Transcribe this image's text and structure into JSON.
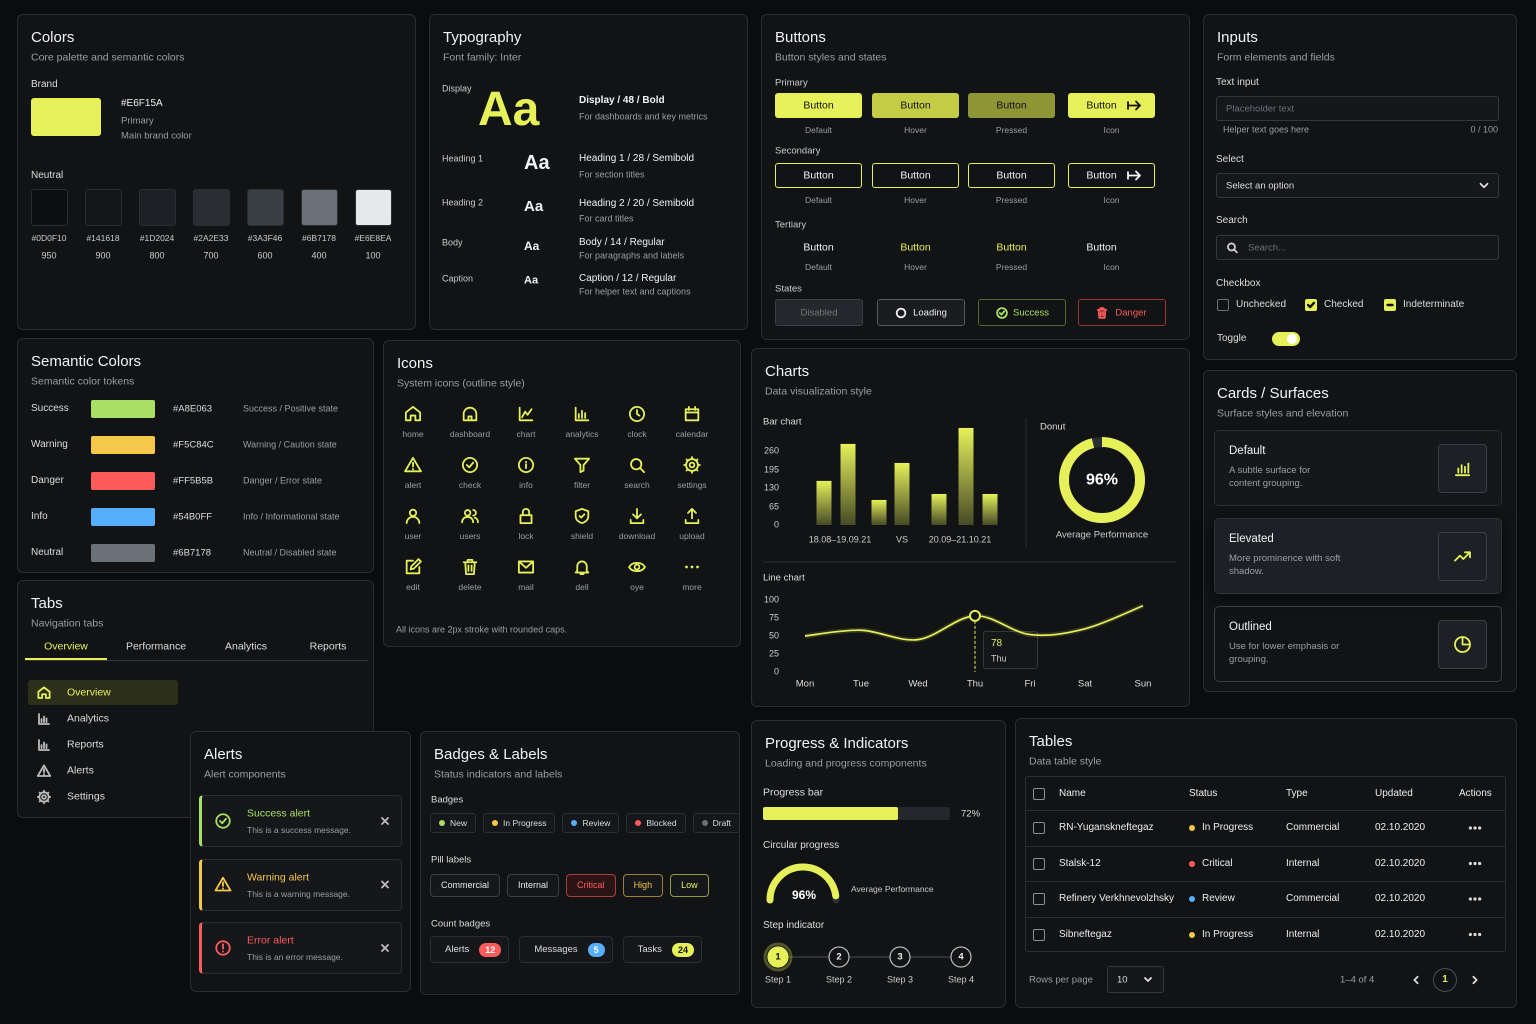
{
  "colors": {
    "title": "Colors",
    "subtitle": "Core palette and semantic colors",
    "brand_label": "Brand",
    "brand": {
      "hex": "#E6F15A",
      "name": "Primary",
      "desc": "Main brand color"
    },
    "neutral_label": "Neutral",
    "neutrals": [
      {
        "hex": "#0D0F10",
        "step": "950"
      },
      {
        "hex": "#141618",
        "step": "900"
      },
      {
        "hex": "#1D2024",
        "step": "800"
      },
      {
        "hex": "#2A2E33",
        "step": "700"
      },
      {
        "hex": "#3A3F46",
        "step": "600"
      },
      {
        "hex": "#6B7178",
        "step": "400"
      },
      {
        "hex": "#E6E8EA",
        "step": "100"
      }
    ]
  },
  "typography": {
    "title": "Typography",
    "subtitle": "Font family: Inter",
    "rows": [
      {
        "label": "Display",
        "sample": "Aa",
        "spec": "Display / 48 / Bold",
        "desc": "For dashboards and key metrics"
      },
      {
        "label": "Heading 1",
        "sample": "Aa",
        "spec": "Heading 1 / 28 / Semibold",
        "desc": "For section titles"
      },
      {
        "label": "Heading 2",
        "sample": "Aa",
        "spec": "Heading 2 / 20 / Semibold",
        "desc": "For card titles"
      },
      {
        "label": "Body",
        "sample": "Aa",
        "spec": "Body / 14 / Regular",
        "desc": "For paragraphs and labels"
      },
      {
        "label": "Caption",
        "sample": "Aa",
        "spec": "Caption / 12 / Regular",
        "desc": "For helper text and captions"
      }
    ]
  },
  "buttons": {
    "title": "Buttons",
    "subtitle": "Button styles and states",
    "groups": [
      {
        "label": "Primary",
        "buttons": [
          "Button",
          "Button",
          "Button",
          "Button"
        ],
        "states": [
          "Default",
          "Hover",
          "Pressed",
          "Icon"
        ]
      },
      {
        "label": "Secondary",
        "buttons": [
          "Button",
          "Button",
          "Button",
          "Button"
        ],
        "states": [
          "Default",
          "Hover",
          "Pressed",
          "Icon"
        ]
      },
      {
        "label": "Tertiary",
        "buttons": [
          "Button",
          "Button",
          "Button",
          "Button"
        ],
        "states": [
          "Default",
          "Hover",
          "Pressed",
          "Icon"
        ]
      }
    ],
    "states_label": "States",
    "states": [
      "Disabled",
      "Loading",
      "Success",
      "Danger"
    ]
  },
  "inputs": {
    "title": "Inputs",
    "subtitle": "Form elements and fields",
    "text_label": "Text input",
    "placeholder": "Placeholder text",
    "helper": "Helper text goes here",
    "counter": "0 / 100",
    "select_label": "Select",
    "select_value": "Select an option",
    "search_label": "Search",
    "search_placeholder": "Search...",
    "checkbox_label": "Checkbox",
    "checkboxes": [
      "Unchecked",
      "Checked",
      "Indeterminate"
    ],
    "toggle_label": "Toggle"
  },
  "semantic": {
    "title": "Semantic Colors",
    "subtitle": "Semantic color tokens",
    "rows": [
      {
        "name": "Success",
        "hex": "#A8E063",
        "desc": "Success / Positive state"
      },
      {
        "name": "Warning",
        "hex": "#F5C84C",
        "desc": "Warning / Caution state"
      },
      {
        "name": "Danger",
        "hex": "#FF5B5B",
        "desc": "Danger / Error state"
      },
      {
        "name": "Info",
        "hex": "#54B0FF",
        "desc": "Info / Informational state"
      },
      {
        "name": "Neutral",
        "hex": "#6B7178",
        "desc": "Neutral / Disabled state"
      }
    ]
  },
  "icons": {
    "title": "Icons",
    "subtitle": "System icons (outline style)",
    "names": [
      "home",
      "dashboard",
      "chart",
      "analytics",
      "clock",
      "calendar",
      "alert",
      "check",
      "info",
      "filter",
      "search",
      "settings",
      "user",
      "users",
      "lock",
      "shield",
      "download",
      "upload",
      "edit",
      "delete",
      "mail",
      "dell",
      "oye",
      "more"
    ],
    "note": "All icons are 2px stroke with rounded caps."
  },
  "tabs": {
    "title": "Tabs",
    "subtitle": "Navigation tabs",
    "tabs": [
      "Overview",
      "Performance",
      "Analytics",
      "Reports"
    ],
    "nav": [
      "Overview",
      "Analytics",
      "Reports",
      "Alerts",
      "Settings"
    ]
  },
  "charts": {
    "title": "Charts",
    "subtitle": "Data visualization style"
  },
  "chart_data": [
    {
      "type": "bar",
      "title": "Bar chart",
      "categories": [
        null,
        "18.08–19.09.21",
        null,
        "VS",
        null,
        "20.09–21.10.21",
        null
      ],
      "values": [
        155,
        285,
        88,
        218,
        109,
        341,
        109
      ],
      "ylim": [
        0,
        350
      ],
      "yticks": [
        0,
        65,
        130,
        195,
        260
      ],
      "color": "#E6F15A"
    },
    {
      "type": "donut",
      "title": "Donut",
      "values": [
        96
      ],
      "value_labels": [
        "96%"
      ],
      "label": "Average Performance",
      "color": "#E6F15A"
    },
    {
      "type": "line",
      "title": "Line chart",
      "categories": [
        "Mon",
        "Tue",
        "Wed",
        "Thu",
        "Fri",
        "Sat",
        "Sun"
      ],
      "values": [
        50,
        58,
        45,
        78,
        52,
        60,
        92
      ],
      "ylim": [
        0,
        100
      ],
      "yticks": [
        0,
        25,
        50,
        75,
        100
      ],
      "color": "#E6F15A"
    }
  ],
  "cards": {
    "title": "Cards / Surfaces",
    "subtitle": "Surface styles and elevation",
    "items": [
      {
        "title": "Default",
        "desc": "A subtle surface for content grouping."
      },
      {
        "title": "Elevated",
        "desc": "More prominence with soft shadow."
      },
      {
        "title": "Outlined",
        "desc": "Use for lower emphasis or grouping."
      }
    ]
  },
  "alerts": {
    "title": "Alerts",
    "subtitle": "Alert components",
    "items": [
      {
        "title": "Success alert",
        "message": "This is a success message.",
        "color": "#A8E063"
      },
      {
        "title": "Warning alert",
        "message": "This is a warning message.",
        "color": "#F5C84C"
      },
      {
        "title": "Error alert",
        "message": "This is an error message.",
        "color": "#FF5B5B"
      }
    ]
  },
  "badges": {
    "title": "Badges & Labels",
    "subtitle": "Status indicators and labels",
    "badges_label": "Badges",
    "badges": [
      {
        "text": "New",
        "color": "#A8E063"
      },
      {
        "text": "In Progress",
        "color": "#F5C84C"
      },
      {
        "text": "Review",
        "color": "#54B0FF"
      },
      {
        "text": "Blocked",
        "color": "#FF5B5B"
      },
      {
        "text": "Draft",
        "color": "#6B7178"
      }
    ],
    "pills_label": "Pill labels",
    "pills": [
      {
        "text": "Commercial",
        "color": "#E6E8EA"
      },
      {
        "text": "Internal",
        "color": "#E6E8EA"
      },
      {
        "text": "Critical",
        "color": "#FF5B5B"
      },
      {
        "text": "High",
        "color": "#F5C84C"
      },
      {
        "text": "Low",
        "color": "#E6F15A"
      }
    ],
    "counts_label": "Count badges",
    "counts": [
      {
        "text": "Alerts",
        "count": 12,
        "color": "#FF5B5B"
      },
      {
        "text": "Messages",
        "count": 5,
        "color": "#54B0FF"
      },
      {
        "text": "Tasks",
        "count": 24,
        "color": "#E6F15A"
      }
    ]
  },
  "progress": {
    "title": "Progress & Indicators",
    "subtitle": "Loading and progress components",
    "bar_label": "Progress bar",
    "bar_value": 72,
    "bar_value_label": "72%",
    "circle_label": "Circular progress",
    "circle_value": 96,
    "circle_value_label": "96%",
    "circle_caption": "Average Performance",
    "steps_label": "Step indicator",
    "steps": [
      {
        "n": 1,
        "label": "Step 1"
      },
      {
        "n": 2,
        "label": "Step 2"
      },
      {
        "n": 3,
        "label": "Step 3"
      },
      {
        "n": 4,
        "label": "Step 4"
      }
    ]
  },
  "tables": {
    "title": "Tables",
    "subtitle": "Data table style",
    "headers": [
      "Name",
      "Status",
      "Type",
      "Updated",
      "Actions"
    ],
    "rows": [
      {
        "name": "RN-Yuganskneftegaz",
        "status": "In Progress",
        "status_color": "#F5C84C",
        "type": "Commercial",
        "updated": "02.10.2020"
      },
      {
        "name": "Stalsk-12",
        "status": "Critical",
        "status_color": "#FF5B5B",
        "type": "Internal",
        "updated": "02.10.2020"
      },
      {
        "name": "Refinery Verkhnevolzhsky",
        "status": "Review",
        "status_color": "#54B0FF",
        "type": "Commercial",
        "updated": "02.10.2020"
      },
      {
        "name": "Sibneftegaz",
        "status": "In Progress",
        "status_color": "#F5C84C",
        "type": "Internal",
        "updated": "02.10.2020"
      }
    ],
    "footer": {
      "rows_label": "Rows per page",
      "page_size": "10",
      "range": "1–4 of 4",
      "page": "1"
    }
  }
}
